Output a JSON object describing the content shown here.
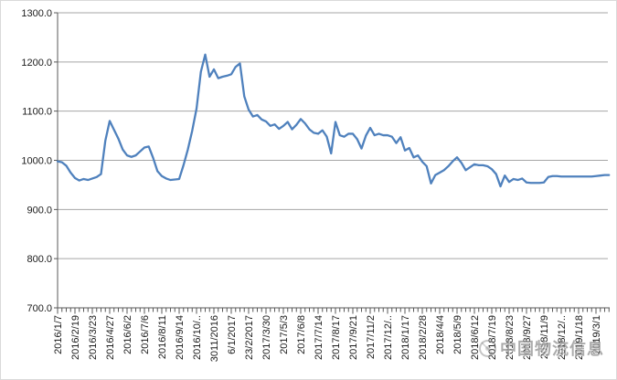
{
  "chart_data": {
    "type": "line",
    "title": "",
    "xlabel": "",
    "ylabel": "",
    "legend": "none",
    "grid": "horizontal",
    "ylim": [
      700,
      1300
    ],
    "y_ticks": [
      1300,
      1200,
      1100,
      1000,
      900,
      800,
      700
    ],
    "y_tick_labels": [
      "1300.0",
      "1200.0",
      "1100.0",
      "1000.0",
      "900.0",
      "800.0",
      "700.0"
    ],
    "x_labels": [
      "2016/1/7",
      "2016/2/19",
      "2016/3/23",
      "2016/4/27",
      "2016/6/2",
      "2016/7/6",
      "2016/8/11",
      "2016/9/14",
      "2016/10/..",
      "3011/2016",
      "6/1/2017",
      "23/2/2017",
      "2017/3/30",
      "2017/5/3",
      "2017/6/8",
      "2017/7/14",
      "2017/8/17",
      "2017/9/21",
      "2017/11/2",
      "2017/12/..",
      "2018/1/17",
      "2018/2/28",
      "2018/4/4",
      "2018/5/9",
      "2018/6/12",
      "2018/7/19",
      "2018/8/23",
      "2018/9/27",
      "2018/11/9",
      "2018/12/..",
      "2019/1/18",
      "2019/3/1"
    ],
    "points_per_label": 4,
    "values": [
      998,
      996,
      989,
      975,
      964,
      959,
      962,
      960,
      963,
      966,
      972,
      1040,
      1080,
      1062,
      1044,
      1022,
      1010,
      1007,
      1010,
      1018,
      1026,
      1028,
      1005,
      978,
      968,
      963,
      960,
      961,
      962,
      990,
      1022,
      1060,
      1105,
      1180,
      1215,
      1170,
      1185,
      1167,
      1170,
      1172,
      1175,
      1190,
      1197,
      1130,
      1103,
      1089,
      1092,
      1083,
      1079,
      1070,
      1073,
      1064,
      1070,
      1078,
      1063,
      1072,
      1084,
      1075,
      1063,
      1056,
      1054,
      1061,
      1048,
      1014,
      1078,
      1051,
      1048,
      1054,
      1054,
      1043,
      1024,
      1050,
      1066,
      1051,
      1054,
      1051,
      1051,
      1048,
      1035,
      1047,
      1020,
      1025,
      1006,
      1010,
      997,
      988,
      953,
      970,
      975,
      980,
      988,
      998,
      1006,
      995,
      980,
      986,
      992,
      990,
      990,
      988,
      982,
      972,
      947,
      969,
      956,
      962,
      960,
      963,
      955,
      954,
      954,
      954,
      955,
      966,
      968,
      968,
      967,
      967,
      967,
      967,
      967,
      967,
      967,
      967,
      968,
      969,
      970,
      970
    ]
  },
  "colors": {
    "line": "#4F81BD",
    "gridline": "#A6A6A6",
    "axis": "#595959",
    "tick_text": "#1a1a1a",
    "chart_border": "#D9D9D9",
    "watermark_gray": "#787878"
  },
  "watermark": {
    "text": "中国物流信息",
    "logo": "compass-logo"
  }
}
